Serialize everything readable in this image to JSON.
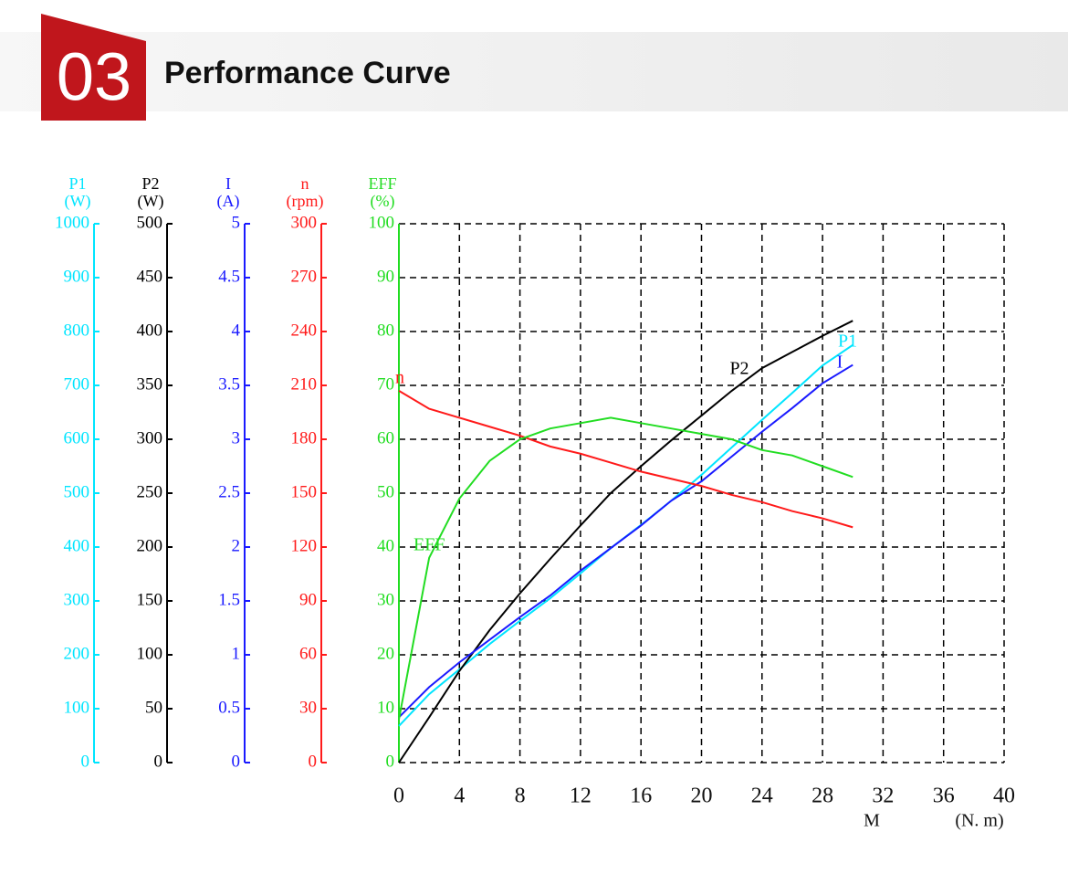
{
  "header": {
    "number": "03",
    "title": "Performance Curve"
  },
  "chart_data": {
    "type": "line",
    "x": [
      0,
      2,
      4,
      6,
      8,
      10,
      12,
      14,
      16,
      18,
      20,
      22,
      24,
      26,
      28,
      30
    ],
    "xlim": [
      0,
      40
    ],
    "xticks": [
      0,
      4,
      8,
      12,
      16,
      20,
      24,
      28,
      32,
      36,
      40
    ],
    "xlabel": "M",
    "xunit": "(N. m)",
    "grid": true,
    "y_axes": [
      {
        "name": "P1",
        "unit": "(W)",
        "color": "#00e5ff",
        "ylim": [
          0,
          1000
        ],
        "yticks": [
          0,
          100,
          200,
          300,
          400,
          500,
          600,
          700,
          800,
          900,
          1000
        ]
      },
      {
        "name": "P2",
        "unit": "(W)",
        "color": "#000000",
        "ylim": [
          0,
          500
        ],
        "yticks": [
          0,
          50,
          100,
          150,
          200,
          250,
          300,
          350,
          400,
          450,
          500
        ]
      },
      {
        "name": "I",
        "unit": "(A)",
        "color": "#1a1aff",
        "ylim": [
          0,
          5
        ],
        "yticks": [
          0,
          0.5,
          1,
          1.5,
          2,
          2.5,
          3,
          3.5,
          4,
          4.5,
          5
        ]
      },
      {
        "name": "n",
        "unit": "(rpm)",
        "color": "#ff1a1a",
        "ylim": [
          0,
          300
        ],
        "yticks": [
          0,
          30,
          60,
          90,
          120,
          150,
          180,
          210,
          240,
          270,
          300
        ]
      },
      {
        "name": "EFF",
        "unit": "(%)",
        "color": "#22dd22",
        "ylim": [
          0,
          100
        ],
        "yticks": [
          0,
          10,
          20,
          30,
          40,
          50,
          60,
          70,
          80,
          90,
          100
        ]
      }
    ],
    "series": [
      {
        "name": "P1",
        "axis": 0,
        "color": "#00e5ff",
        "values": [
          68,
          127,
          173,
          220,
          263,
          305,
          351,
          398,
          441,
          486,
          534,
          585,
          636,
          686,
          737,
          775
        ]
      },
      {
        "name": "P2",
        "axis": 1,
        "color": "#000000",
        "values": [
          0,
          42,
          85,
          123,
          157,
          189,
          220,
          250,
          275,
          299,
          322,
          345,
          366,
          381,
          396,
          410
        ]
      },
      {
        "name": "I",
        "axis": 2,
        "color": "#1a1aff",
        "values": [
          0.42,
          0.7,
          0.93,
          1.14,
          1.35,
          1.55,
          1.78,
          1.99,
          2.2,
          2.43,
          2.61,
          2.84,
          3.07,
          3.29,
          3.52,
          3.69
        ]
      },
      {
        "name": "n",
        "axis": 3,
        "color": "#ff1a1a",
        "values": [
          207,
          197,
          192,
          187,
          182,
          176,
          172,
          167,
          162,
          158,
          154,
          149,
          145,
          140,
          136,
          131
        ]
      },
      {
        "name": "EFF",
        "axis": 4,
        "color": "#22dd22",
        "values": [
          8,
          38,
          49,
          56,
          60,
          62,
          63,
          64,
          63,
          62,
          61,
          60,
          58,
          57,
          55,
          53
        ]
      }
    ]
  }
}
